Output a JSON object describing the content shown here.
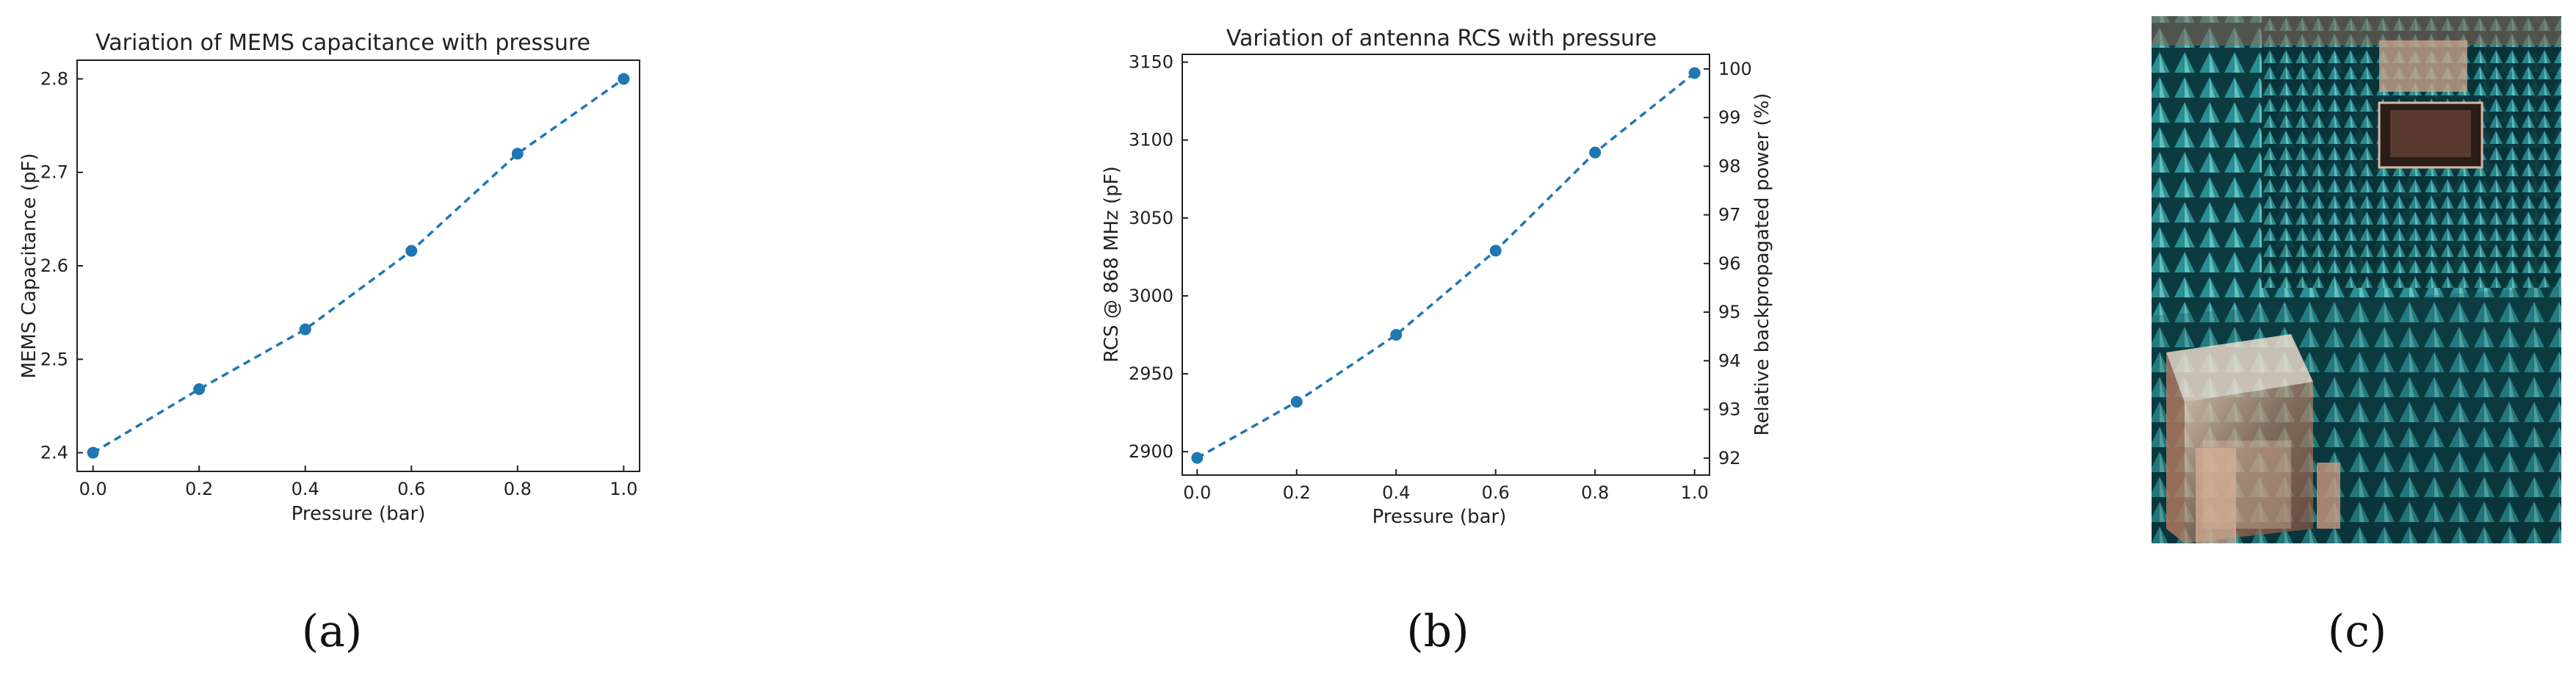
{
  "chart_data": [
    {
      "type": "line",
      "title": "Variation of MEMS capacitance with pressure",
      "xlabel": "Pressure (bar)",
      "ylabel": "MEMS Capacitance (pF)",
      "x": [
        0.0,
        0.2,
        0.4,
        0.6,
        0.8,
        1.0
      ],
      "values": [
        2.4,
        2.468,
        2.532,
        2.616,
        2.72,
        2.8
      ],
      "xlim": [
        -0.03,
        1.03
      ],
      "ylim": [
        2.38,
        2.82
      ],
      "xticks": [
        "0.0",
        "0.2",
        "0.4",
        "0.6",
        "0.8",
        "1.0"
      ],
      "yticks": [
        "2.4",
        "2.5",
        "2.6",
        "2.7",
        "2.8"
      ],
      "color": "#1f77b4",
      "panel_label": "(a)"
    },
    {
      "type": "line",
      "title": "Variation of antenna RCS with pressure",
      "xlabel": "Pressure (bar)",
      "ylabel": "RCS @ 868 MHz (pF)",
      "ylabel_right": "Relative backpropagated power (%)",
      "x": [
        0.0,
        0.2,
        0.4,
        0.6,
        0.8,
        1.0
      ],
      "values": [
        2896,
        2932,
        2975,
        3029,
        3092,
        3143
      ],
      "xlim": [
        -0.03,
        1.03
      ],
      "ylim": [
        2885,
        3155
      ],
      "ylim_right": [
        91.65,
        100.3
      ],
      "xticks": [
        "0.0",
        "0.2",
        "0.4",
        "0.6",
        "0.8",
        "1.0"
      ],
      "yticks": [
        "2900",
        "2950",
        "3000",
        "3050",
        "3100",
        "3150"
      ],
      "yticks_right": [
        "92",
        "93",
        "94",
        "95",
        "96",
        "97",
        "98",
        "99",
        "100"
      ],
      "color": "#1f77b4",
      "panel_label": "(b)"
    }
  ],
  "photo": {
    "description_icon": "anechoic-chamber-photo-icon",
    "panel_label": "(c)"
  }
}
